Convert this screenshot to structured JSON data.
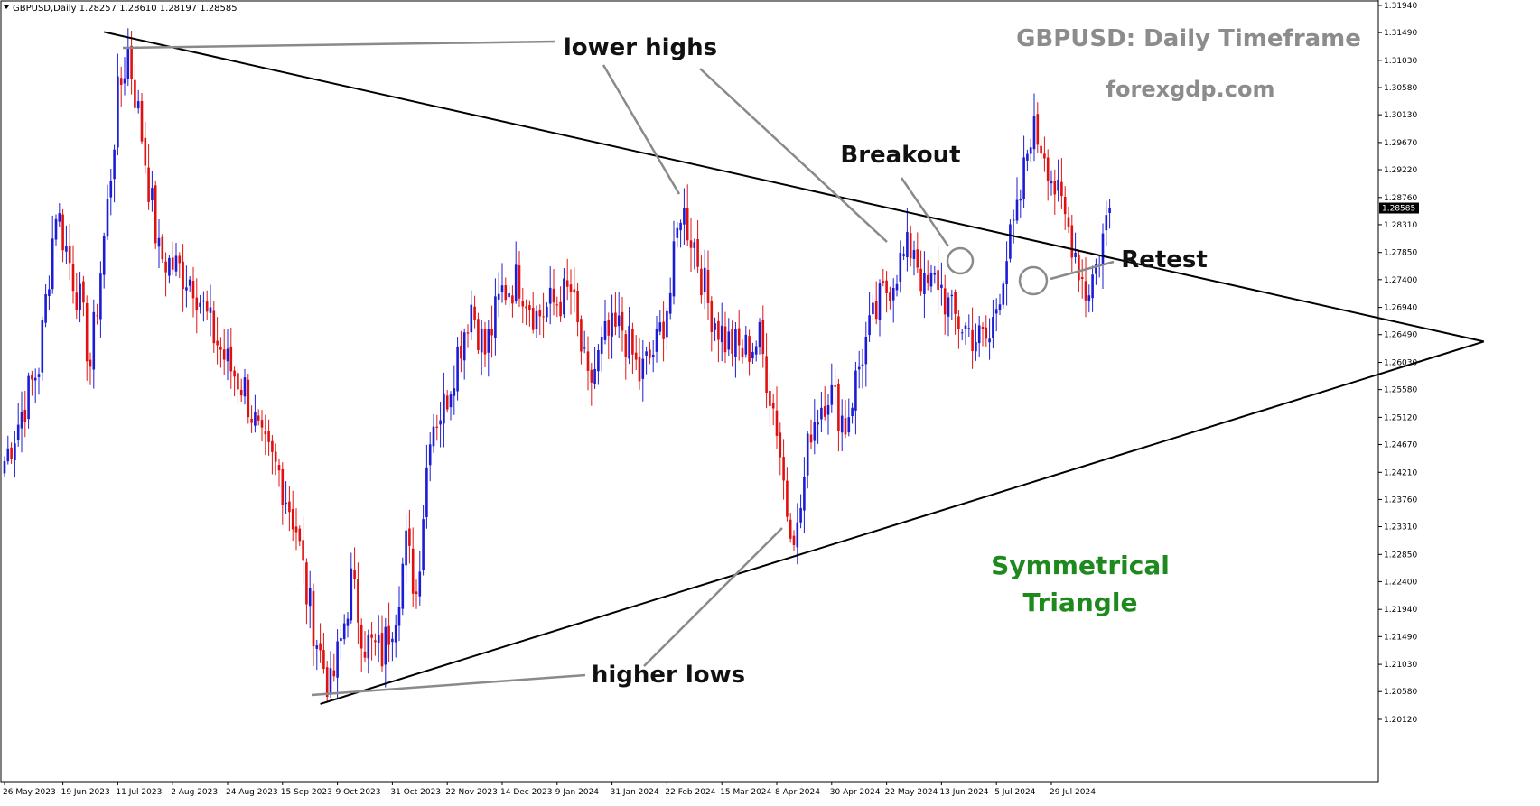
{
  "chart_data": {
    "type": "candlestick",
    "symbol_info": "GBPUSD,Daily  1.28257 1.28610 1.28197 1.28585",
    "title": "GBPUSD: Daily Timeframe",
    "watermark": "forexgdp.com",
    "pattern_label_lines": [
      "Symmetrical",
      "Triangle"
    ],
    "current_price": 1.28585,
    "current_price_label": "1.28585",
    "colors": {
      "bull": "#1c1cd6",
      "bear": "#e01010",
      "trendline": "#000000",
      "annotation_line": "#8a8a8a",
      "pattern_text": "#1e8a1e",
      "title_text": "#8c8c8c"
    },
    "y_ticks": [
      "1.31940",
      "1.31490",
      "1.31030",
      "1.30580",
      "1.30130",
      "1.29670",
      "1.29220",
      "1.28760",
      "1.28310",
      "1.27850",
      "1.27400",
      "1.26940",
      "1.26490",
      "1.26030",
      "1.25580",
      "1.25120",
      "1.24670",
      "1.24210",
      "1.23760",
      "1.23310",
      "1.22850",
      "1.22400",
      "1.21940",
      "1.21490",
      "1.21030",
      "1.20580",
      "1.20120"
    ],
    "ylim": [
      1.2012,
      1.3194
    ],
    "x_ticks": [
      {
        "label": "26 May 2023",
        "i": 0
      },
      {
        "label": "19 Jun 2023",
        "i": 17
      },
      {
        "label": "11 Jul 2023",
        "i": 33
      },
      {
        "label": "2 Aug 2023",
        "i": 49
      },
      {
        "label": "24 Aug 2023",
        "i": 65
      },
      {
        "label": "15 Sep 2023",
        "i": 81
      },
      {
        "label": "9 Oct 2023",
        "i": 97
      },
      {
        "label": "31 Oct 2023",
        "i": 113
      },
      {
        "label": "22 Nov 2023",
        "i": 129
      },
      {
        "label": "14 Dec 2023",
        "i": 145
      },
      {
        "label": "9 Jan 2024",
        "i": 161
      },
      {
        "label": "31 Jan 2024",
        "i": 177
      },
      {
        "label": "22 Feb 2024",
        "i": 193
      },
      {
        "label": "15 Mar 2024",
        "i": 209
      },
      {
        "label": "8 Apr 2024",
        "i": 225
      },
      {
        "label": "30 Apr 2024",
        "i": 241
      },
      {
        "label": "22 May 2024",
        "i": 257
      },
      {
        "label": "13 Jun 2024",
        "i": 273
      },
      {
        "label": "5 Jul 2024",
        "i": 289
      },
      {
        "label": "29 Jul 2024",
        "i": 305
      }
    ],
    "close_path": [
      [
        0,
        1.244
      ],
      [
        10,
        1.26
      ],
      [
        15,
        1.286
      ],
      [
        22,
        1.27
      ],
      [
        25,
        1.26
      ],
      [
        30,
        1.286
      ],
      [
        33,
        1.304
      ],
      [
        36,
        1.312
      ],
      [
        40,
        1.298
      ],
      [
        45,
        1.278
      ],
      [
        50,
        1.276
      ],
      [
        55,
        1.274
      ],
      [
        60,
        1.266
      ],
      [
        65,
        1.26
      ],
      [
        70,
        1.256
      ],
      [
        75,
        1.246
      ],
      [
        80,
        1.242
      ],
      [
        85,
        1.233
      ],
      [
        88,
        1.222
      ],
      [
        92,
        1.212
      ],
      [
        95,
        1.206
      ],
      [
        98,
        1.214
      ],
      [
        101,
        1.224
      ],
      [
        105,
        1.214
      ],
      [
        110,
        1.212
      ],
      [
        114,
        1.22
      ],
      [
        117,
        1.23
      ],
      [
        120,
        1.222
      ],
      [
        124,
        1.25
      ],
      [
        128,
        1.253
      ],
      [
        132,
        1.262
      ],
      [
        136,
        1.27
      ],
      [
        140,
        1.262
      ],
      [
        145,
        1.272
      ],
      [
        150,
        1.274
      ],
      [
        155,
        1.268
      ],
      [
        160,
        1.27
      ],
      [
        165,
        1.272
      ],
      [
        170,
        1.256
      ],
      [
        175,
        1.264
      ],
      [
        180,
        1.266
      ],
      [
        185,
        1.258
      ],
      [
        190,
        1.263
      ],
      [
        194,
        1.272
      ],
      [
        197,
        1.286
      ],
      [
        201,
        1.28
      ],
      [
        205,
        1.27
      ],
      [
        210,
        1.264
      ],
      [
        215,
        1.262
      ],
      [
        220,
        1.264
      ],
      [
        225,
        1.25
      ],
      [
        228,
        1.236
      ],
      [
        231,
        1.232
      ],
      [
        235,
        1.25
      ],
      [
        240,
        1.256
      ],
      [
        245,
        1.25
      ],
      [
        250,
        1.262
      ],
      [
        255,
        1.27
      ],
      [
        260,
        1.276
      ],
      [
        265,
        1.28
      ],
      [
        268,
        1.272
      ],
      [
        272,
        1.274
      ],
      [
        276,
        1.268
      ],
      [
        280,
        1.266
      ],
      [
        284,
        1.264
      ],
      [
        287,
        1.264
      ],
      [
        291,
        1.276
      ],
      [
        295,
        1.284
      ],
      [
        299,
        1.299
      ],
      [
        303,
        1.296
      ],
      [
        307,
        1.287
      ],
      [
        311,
        1.281
      ],
      [
        315,
        1.272
      ],
      [
        318,
        1.276
      ],
      [
        322,
        1.286
      ]
    ],
    "candle_count": 323,
    "trendlines": [
      {
        "name": "upper-trendline",
        "from": {
          "i": 29,
          "price": 1.315
        },
        "to": {
          "i": 431,
          "price": 1.26375
        }
      },
      {
        "name": "lower-trendline",
        "from": {
          "i": 92,
          "price": 1.20375
        },
        "to": {
          "i": 431,
          "price": 1.26375
        }
      }
    ],
    "annotations": [
      {
        "name": "lower-highs-label",
        "text": "lower highs"
      },
      {
        "name": "higher-lows-label",
        "text": "higher lows"
      },
      {
        "name": "breakout-label",
        "text": "Breakout"
      },
      {
        "name": "retest-label",
        "text": "Retest"
      }
    ]
  }
}
